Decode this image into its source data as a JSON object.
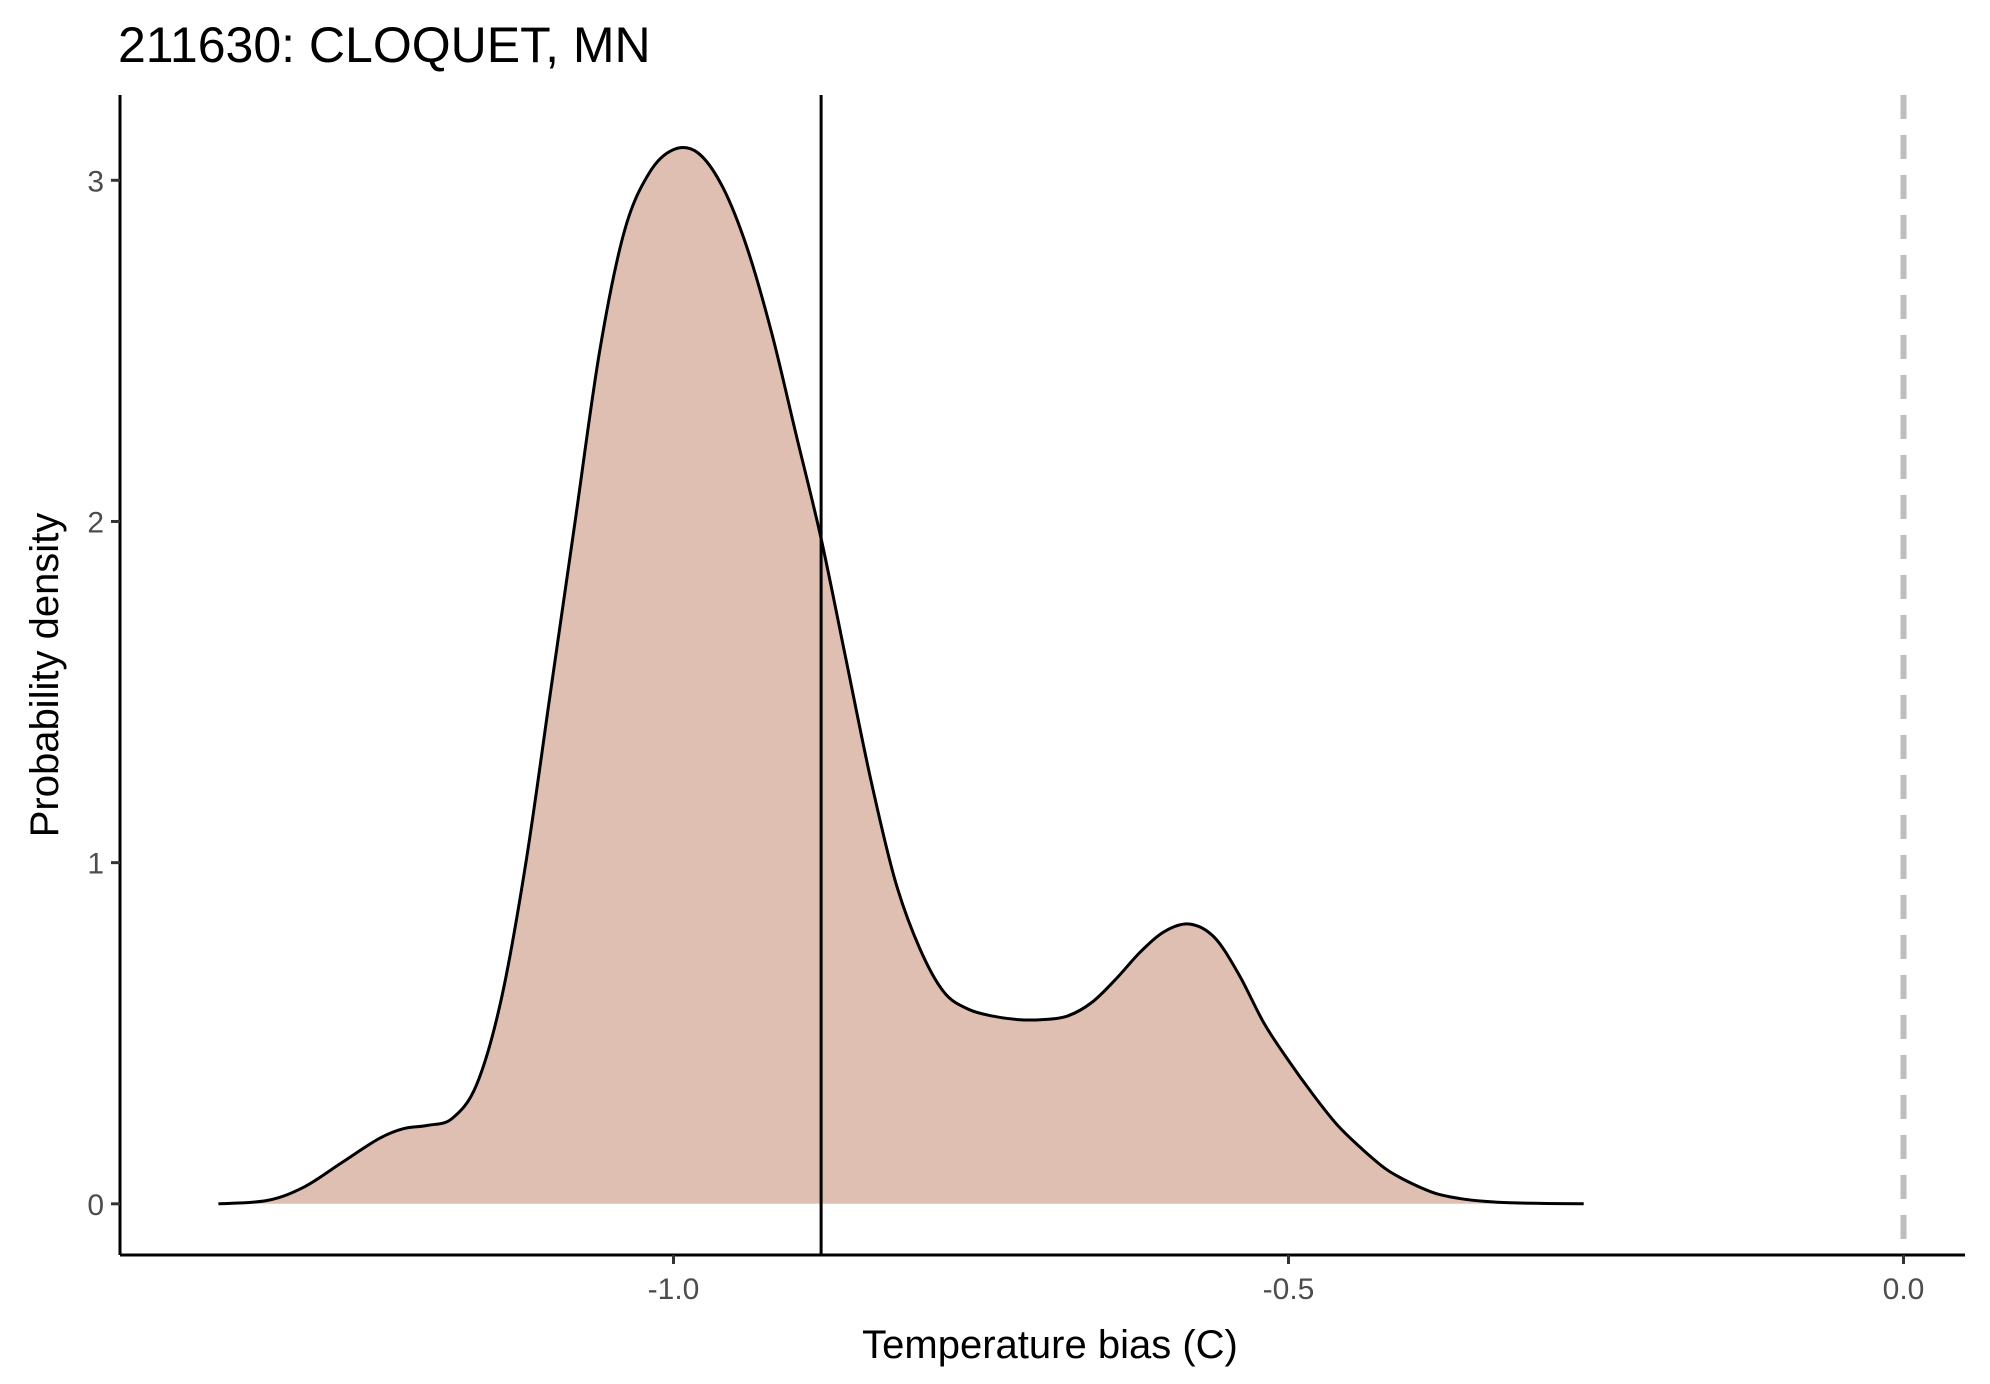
{
  "chart_data": {
    "type": "area",
    "title": "211630: CLOQUET, MN",
    "xlabel": "Temperature bias (C)",
    "ylabel": "Probability density",
    "xlim": [
      -1.45,
      0.05
    ],
    "ylim": [
      -0.15,
      3.25
    ],
    "x_ticks": [
      -1.0,
      -0.5,
      0.0
    ],
    "x_tick_labels": [
      "-1.0",
      "-0.5",
      "0.0"
    ],
    "y_ticks": [
      0,
      1,
      2,
      3
    ],
    "y_tick_labels": [
      "0",
      "1",
      "2",
      "3"
    ],
    "grid": false,
    "legend": "none",
    "series": [
      {
        "x": [
          -1.37,
          -1.33,
          -1.3,
          -1.27,
          -1.24,
          -1.22,
          -1.2,
          -1.18,
          -1.16,
          -1.14,
          -1.12,
          -1.1,
          -1.08,
          -1.06,
          -1.04,
          -1.02,
          -1.0,
          -0.98,
          -0.96,
          -0.94,
          -0.92,
          -0.9,
          -0.88,
          -0.86,
          -0.84,
          -0.82,
          -0.8,
          -0.78,
          -0.76,
          -0.74,
          -0.72,
          -0.7,
          -0.68,
          -0.66,
          -0.64,
          -0.62,
          -0.6,
          -0.58,
          -0.56,
          -0.54,
          -0.52,
          -0.5,
          -0.48,
          -0.46,
          -0.44,
          -0.42,
          -0.4,
          -0.38,
          -0.36,
          -0.34,
          -0.32,
          -0.29,
          -0.26
        ],
        "y": [
          0.0,
          0.01,
          0.05,
          0.12,
          0.19,
          0.22,
          0.23,
          0.25,
          0.35,
          0.6,
          1.0,
          1.5,
          2.0,
          2.5,
          2.85,
          3.02,
          3.09,
          3.08,
          2.98,
          2.8,
          2.55,
          2.25,
          1.95,
          1.6,
          1.25,
          0.95,
          0.75,
          0.62,
          0.57,
          0.55,
          0.54,
          0.54,
          0.55,
          0.59,
          0.66,
          0.74,
          0.8,
          0.82,
          0.78,
          0.67,
          0.53,
          0.42,
          0.32,
          0.23,
          0.16,
          0.1,
          0.06,
          0.03,
          0.015,
          0.007,
          0.003,
          0.001,
          0.0
        ]
      }
    ],
    "reference_lines": [
      {
        "x": -0.88,
        "style": "solid"
      },
      {
        "x": 0.0,
        "style": "dashed"
      }
    ],
    "colors": {
      "fill": "#e0bfb3",
      "curve": "#000000",
      "axis": "#000000",
      "tick_label": "#4d4d4d",
      "zero_line": "#bebebe"
    }
  }
}
